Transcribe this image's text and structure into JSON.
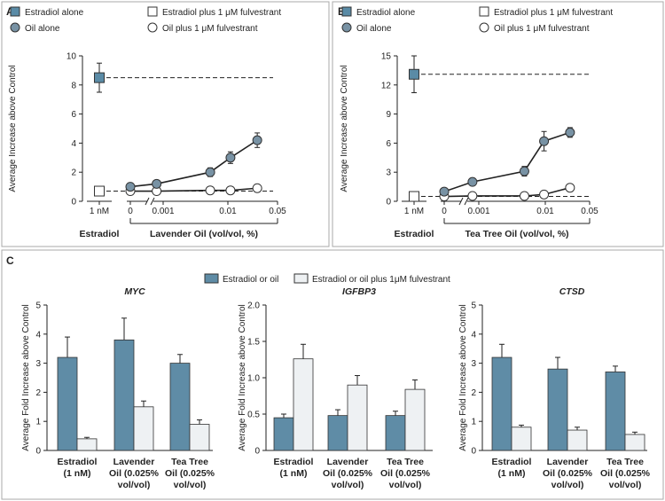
{
  "colors": {
    "estradiol_marker": "#5a8ba6",
    "oil_marker": "#7892a4",
    "bar_fill": "#5f8ca6",
    "bar_light": "#eef1f3",
    "panel_border": "#a8a8a8",
    "text": "#222222"
  },
  "chart_data": [
    {
      "panel": "A",
      "type": "line",
      "ylabel": "Average Increase above Control",
      "ylim": [
        0,
        10
      ],
      "yticks": [
        "0",
        "2",
        "4",
        "6",
        "8",
        "10"
      ],
      "legend": [
        "Estradiol alone",
        "Estradiol plus 1 μM fulvestrant",
        "Oil alone",
        "Oil plus 1 μM fulvestrant"
      ],
      "estradiol_tick": "1 nM",
      "estradiol_label": "Estradiol",
      "xticks": [
        "0",
        "0.001",
        "0.01",
        "0.05"
      ],
      "xlabel": "Lavender Oil (vol/vol, %)",
      "series": [
        {
          "name": "Estradiol alone",
          "x": [
            "1 nM"
          ],
          "y": [
            8.5
          ],
          "err": [
            1.0
          ]
        },
        {
          "name": "Estradiol plus 1 μM fulvestrant",
          "x": [
            "1 nM"
          ],
          "y": [
            0.7
          ],
          "err": [
            0
          ]
        },
        {
          "name": "Oil alone",
          "x": [
            0,
            0.0008,
            0.005,
            0.01,
            0.025
          ],
          "y": [
            1.0,
            1.2,
            2.0,
            3.0,
            4.2
          ],
          "err": [
            0.2,
            0.2,
            0.3,
            0.4,
            0.5
          ]
        },
        {
          "name": "Oil plus 1 μM fulvestrant",
          "x": [
            0,
            0.0008,
            0.005,
            0.01,
            0.025
          ],
          "y": [
            0.7,
            0.7,
            0.75,
            0.75,
            0.9
          ],
          "err": [
            0,
            0,
            0,
            0,
            0.1
          ]
        }
      ]
    },
    {
      "panel": "B",
      "type": "line",
      "ylabel": "Average Increase above Control",
      "ylim": [
        0,
        15
      ],
      "yticks": [
        "0",
        "3",
        "6",
        "9",
        "12",
        "15"
      ],
      "legend": [
        "Estradiol alone",
        "Estradiol plus 1 μM fulvestrant",
        "Oil alone",
        "Oil plus 1 μM fulvestrant"
      ],
      "estradiol_tick": "1 nM",
      "estradiol_label": "Estradiol",
      "xticks": [
        "0",
        "0.001",
        "0.01",
        "0.05"
      ],
      "xlabel": "Tea Tree Oil (vol/vol, %)",
      "series": [
        {
          "name": "Estradiol alone",
          "x": [
            "1 nM"
          ],
          "y": [
            13.1
          ],
          "err": [
            1.9
          ]
        },
        {
          "name": "Estradiol plus 1 μM fulvestrant",
          "x": [
            "1 nM"
          ],
          "y": [
            0.5
          ],
          "err": [
            0
          ]
        },
        {
          "name": "Oil alone",
          "x": [
            0,
            0.0008,
            0.005,
            0.01,
            0.025
          ],
          "y": [
            1.0,
            2.0,
            3.1,
            6.2,
            7.1
          ],
          "err": [
            0.2,
            0.3,
            0.5,
            1.0,
            0.5
          ]
        },
        {
          "name": "Oil plus 1 μM fulvestrant",
          "x": [
            0,
            0.0008,
            0.005,
            0.01,
            0.025
          ],
          "y": [
            0.5,
            0.55,
            0.55,
            0.7,
            1.4
          ],
          "err": [
            0,
            0,
            0,
            0.1,
            0.2
          ]
        }
      ]
    },
    {
      "panel": "C",
      "type": "bar",
      "title": "MYC",
      "ylabel": "Average Fold Increase above Control",
      "ylim": [
        0,
        5
      ],
      "yticks": [
        "0",
        "1",
        "2",
        "3",
        "4",
        "5"
      ],
      "categories": [
        "Estradiol (1 nM)",
        "Lavender Oil (0.025% vol/vol)",
        "Tea Tree Oil (0.025% vol/vol)"
      ],
      "series": [
        {
          "name": "Estradiol or oil",
          "values": [
            3.2,
            3.8,
            3.0
          ],
          "err": [
            0.7,
            0.75,
            0.3
          ]
        },
        {
          "name": "Estradiol or oil plus 1μM fulvestrant",
          "values": [
            0.4,
            1.5,
            0.9
          ],
          "err": [
            0.05,
            0.2,
            0.15
          ]
        }
      ]
    },
    {
      "panel": "C",
      "type": "bar",
      "title": "IGFBP3",
      "ylabel": "Average Fold Increase above Control",
      "ylim": [
        0,
        2.0
      ],
      "yticks": [
        "0",
        "0.5",
        "1.0",
        "1.5",
        "2.0"
      ],
      "categories": [
        "Estradiol (1 nM)",
        "Lavender Oil (0.025% vol/vol)",
        "Tea Tree Oil (0.025% vol/vol)"
      ],
      "series": [
        {
          "name": "Estradiol or oil",
          "values": [
            0.45,
            0.48,
            0.48
          ],
          "err": [
            0.05,
            0.08,
            0.06
          ]
        },
        {
          "name": "Estradiol or oil plus 1μM fulvestrant",
          "values": [
            1.26,
            0.9,
            0.84
          ],
          "err": [
            0.2,
            0.13,
            0.13
          ]
        }
      ]
    },
    {
      "panel": "C",
      "type": "bar",
      "title": "CTSD",
      "ylabel": "Average Fold Increase above Control",
      "ylim": [
        0,
        5
      ],
      "yticks": [
        "0",
        "1",
        "2",
        "3",
        "4",
        "5"
      ],
      "categories": [
        "Estradiol (1 nM)",
        "Lavender Oil (0.025% vol/vol)",
        "Tea Tree Oil (0.025% vol/vol)"
      ],
      "series": [
        {
          "name": "Estradiol or oil",
          "values": [
            3.2,
            2.8,
            2.7
          ],
          "err": [
            0.45,
            0.4,
            0.2
          ]
        },
        {
          "name": "Estradiol or oil plus 1μM fulvestrant",
          "values": [
            0.8,
            0.7,
            0.55
          ],
          "err": [
            0.07,
            0.1,
            0.08
          ]
        }
      ]
    }
  ],
  "panel_c": {
    "letter": "C",
    "legend": [
      "Estradiol or oil",
      "Estradiol or oil plus 1μM fulvestrant"
    ],
    "category_lines": [
      [
        "Estradiol",
        "(1 nM)"
      ],
      [
        "Lavender",
        "Oil (0.025%",
        "vol/vol)"
      ],
      [
        "Tea Tree",
        "Oil (0.025%",
        "vol/vol)"
      ]
    ]
  }
}
